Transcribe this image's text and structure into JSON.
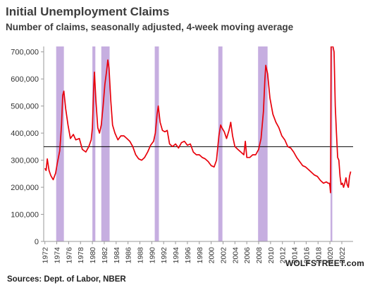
{
  "title": "Initial Unemployment Claims",
  "subtitle": "Number of claims, seasonally adjusted, 4-week moving average",
  "source": "Sources: Dept. of Labor, NBER",
  "brand": "WOLFSTREET.com",
  "colors": {
    "line": "#e8000b",
    "recession": "#c6aee0",
    "reference": "#000000",
    "axis": "#999999"
  },
  "chart_data": {
    "type": "line",
    "title": "Initial Unemployment Claims",
    "subtitle": "Number of claims, seasonally adjusted, 4-week moving average",
    "xlim": [
      1971.8,
      2023.9
    ],
    "ylim": [
      0,
      720000
    ],
    "y_ticks": [
      0,
      100000,
      200000,
      300000,
      400000,
      500000,
      600000,
      700000
    ],
    "y_tick_labels": [
      "0",
      "100,000",
      "200,000",
      "300,000",
      "400,000",
      "500,000",
      "600,000",
      "700,000"
    ],
    "x_ticks": [
      1972,
      1974,
      1976,
      1978,
      1980,
      1982,
      1984,
      1986,
      1988,
      1990,
      1992,
      1994,
      1996,
      1998,
      2000,
      2002,
      2004,
      2006,
      2008,
      2010,
      2012,
      2014,
      2016,
      2018,
      2020,
      2022
    ],
    "x_tick_labels": [
      "1972",
      "1974",
      "1976",
      "1978",
      "1980",
      "1982",
      "1984",
      "1986",
      "1988",
      "1990",
      "1992",
      "1994",
      "1996",
      "1998",
      "2000",
      "2002",
      "2004",
      "2006",
      "2008",
      "2010",
      "2012",
      "2014",
      "2016",
      "2018",
      "2020",
      "2022"
    ],
    "reference_line": 350000,
    "recessions": [
      [
        1973.9,
        1975.2
      ],
      [
        1980.0,
        1980.5
      ],
      [
        1981.5,
        1982.9
      ],
      [
        1990.5,
        1991.2
      ],
      [
        2001.2,
        2001.9
      ],
      [
        2007.9,
        2009.5
      ],
      [
        2020.1,
        2020.4
      ]
    ],
    "series": [
      {
        "x": [
          1972.0,
          1972.2,
          1972.4,
          1972.7,
          1973.0,
          1973.4,
          1973.8,
          1974.1,
          1974.5,
          1974.8,
          1975.0,
          1975.2,
          1975.5,
          1975.9,
          1976.3,
          1976.8,
          1977.2,
          1977.8,
          1978.3,
          1978.9,
          1979.4,
          1979.8,
          1980.0,
          1980.2,
          1980.35,
          1980.6,
          1980.9,
          1981.2,
          1981.5,
          1981.8,
          1982.1,
          1982.4,
          1982.6,
          1982.8,
          1983.1,
          1983.4,
          1983.8,
          1984.3,
          1984.8,
          1985.3,
          1985.8,
          1986.3,
          1986.8,
          1987.3,
          1987.8,
          1988.3,
          1988.8,
          1989.3,
          1989.8,
          1990.3,
          1990.6,
          1990.9,
          1991.1,
          1991.4,
          1991.8,
          1992.2,
          1992.6,
          1993.0,
          1993.5,
          1994.0,
          1994.5,
          1995.0,
          1995.5,
          1996.0,
          1996.5,
          1997.0,
          1997.5,
          1998.0,
          1998.5,
          1999.0,
          1999.5,
          2000.0,
          2000.5,
          2000.9,
          2001.3,
          2001.6,
          2001.8,
          2002.2,
          2002.6,
          2003.0,
          2003.3,
          2003.6,
          2004.0,
          2004.5,
          2005.0,
          2005.5,
          2005.75,
          2006.0,
          2006.5,
          2007.0,
          2007.5,
          2008.0,
          2008.4,
          2008.8,
          2009.05,
          2009.2,
          2009.5,
          2009.9,
          2010.4,
          2010.9,
          2011.4,
          2011.9,
          2012.4,
          2012.9,
          2013.4,
          2013.9,
          2014.4,
          2014.9,
          2015.4,
          2015.9,
          2016.4,
          2016.9,
          2017.4,
          2017.9,
          2018.4,
          2018.9,
          2019.4,
          2019.7,
          2019.9,
          2020.0,
          2020.1,
          2020.2,
          2020.35,
          2020.5,
          2020.7,
          2020.9,
          2021.1,
          2021.3,
          2021.5,
          2021.7,
          2021.9,
          2022.1,
          2022.3,
          2022.5,
          2022.7,
          2022.9,
          2023.1,
          2023.3,
          2023.5
        ],
        "y": [
          270000,
          262000,
          305000,
          262000,
          243000,
          228000,
          252000,
          290000,
          335000,
          430000,
          540000,
          555000,
          490000,
          430000,
          380000,
          395000,
          375000,
          380000,
          340000,
          330000,
          350000,
          375000,
          420000,
          560000,
          625000,
          520000,
          420000,
          400000,
          430000,
          500000,
          580000,
          630000,
          670000,
          640000,
          520000,
          430000,
          400000,
          375000,
          390000,
          390000,
          380000,
          370000,
          350000,
          320000,
          305000,
          300000,
          310000,
          330000,
          355000,
          370000,
          400000,
          470000,
          500000,
          440000,
          410000,
          405000,
          410000,
          360000,
          350000,
          360000,
          345000,
          365000,
          370000,
          355000,
          360000,
          330000,
          320000,
          320000,
          310000,
          305000,
          295000,
          280000,
          275000,
          300000,
          390000,
          430000,
          420000,
          405000,
          380000,
          410000,
          440000,
          390000,
          350000,
          340000,
          330000,
          320000,
          370000,
          310000,
          310000,
          320000,
          320000,
          340000,
          380000,
          480000,
          600000,
          650000,
          620000,
          530000,
          470000,
          440000,
          420000,
          390000,
          375000,
          350000,
          345000,
          330000,
          310000,
          295000,
          280000,
          275000,
          265000,
          255000,
          245000,
          240000,
          225000,
          215000,
          220000,
          215000,
          215000,
          205000,
          180000,
          720000,
          720000,
          720000,
          700000,
          500000,
          400000,
          310000,
          300000,
          240000,
          210000,
          215000,
          200000,
          215000,
          235000,
          210000,
          200000,
          240000,
          258000
        ]
      }
    ]
  }
}
